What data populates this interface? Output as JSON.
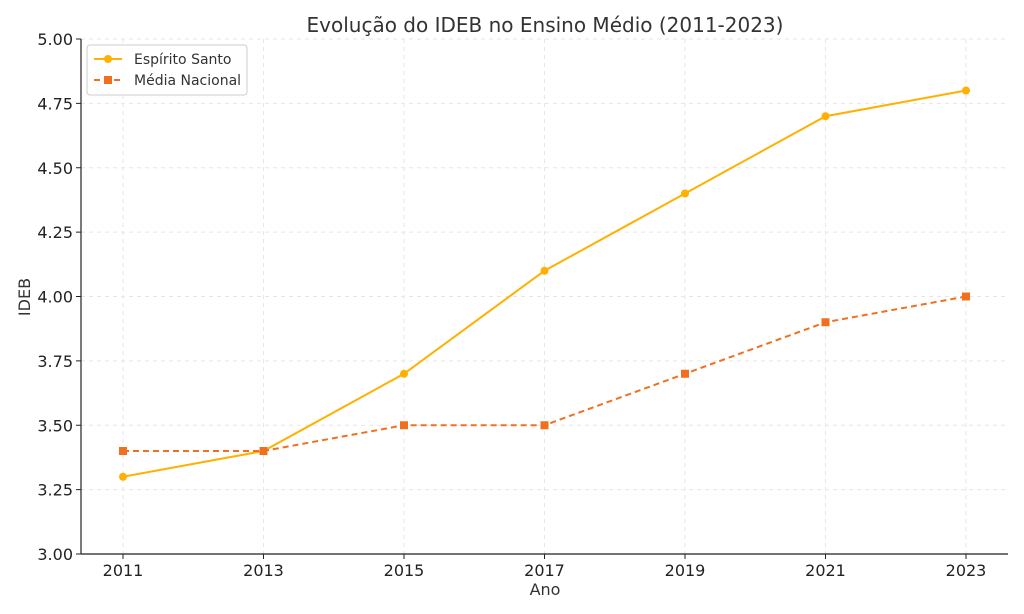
{
  "chart_data": {
    "type": "line",
    "title": "Evolução do IDEB no Ensino Médio (2011-2023)",
    "xlabel": "Ano",
    "ylabel": "IDEB",
    "categories": [
      "2011",
      "2013",
      "2015",
      "2017",
      "2019",
      "2021",
      "2023"
    ],
    "ylim": [
      3.0,
      5.0
    ],
    "yticks": [
      "3.00",
      "3.25",
      "3.50",
      "3.75",
      "4.00",
      "4.25",
      "4.50",
      "4.75",
      "5.00"
    ],
    "grid": true,
    "legend_position": "top-left",
    "series": [
      {
        "name": "Espírito Santo",
        "values": [
          3.3,
          3.4,
          3.7,
          4.1,
          4.4,
          4.7,
          4.8
        ],
        "color": "#FFB000",
        "line_style": "solid",
        "marker": "circle"
      },
      {
        "name": "Média Nacional",
        "values": [
          3.4,
          3.4,
          3.5,
          3.5,
          3.7,
          3.9,
          4.0
        ],
        "color": "#F07020",
        "line_style": "dashed",
        "marker": "square"
      }
    ]
  }
}
